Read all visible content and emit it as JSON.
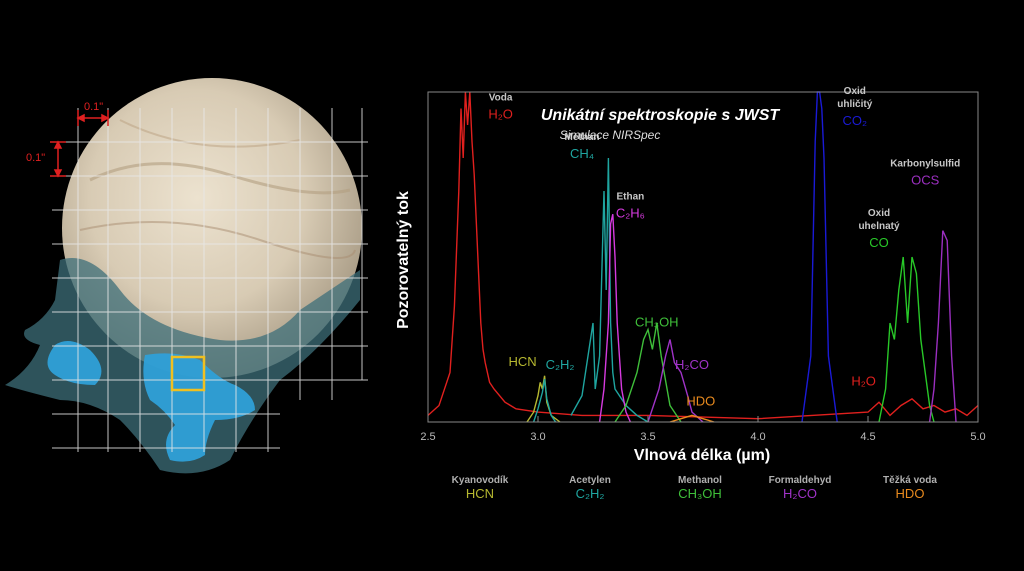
{
  "map": {
    "scale_x_label": "0.1\"",
    "scale_y_label": "0.1\""
  },
  "chart_data": {
    "type": "line",
    "title": "Unikátní spektroskopie s JWST",
    "subtitle": "Simulace NIRSpec",
    "xlabel": "Vlnová délka (µm)",
    "ylabel": "Pozorovatelný tok",
    "xlim": [
      2.5,
      5.0
    ],
    "ylim": [
      0,
      1
    ],
    "xticks": [
      "2.5",
      "3.0",
      "3.5",
      "4.0",
      "4.5",
      "5.0"
    ],
    "grid": false,
    "series": [
      {
        "name": "H2O",
        "color": "#e0201e",
        "x": [
          2.5,
          2.55,
          2.6,
          2.62,
          2.64,
          2.65,
          2.66,
          2.67,
          2.68,
          2.69,
          2.7,
          2.71,
          2.72,
          2.73,
          2.74,
          2.75,
          2.76,
          2.78,
          2.8,
          2.85,
          2.9,
          3.0,
          3.2,
          3.5,
          4.0,
          4.5,
          4.55,
          4.6,
          4.65,
          4.7,
          4.75,
          4.8,
          4.85,
          4.9,
          4.95,
          5.0
        ],
        "y": [
          0.02,
          0.05,
          0.15,
          0.35,
          0.7,
          0.95,
          0.8,
          1.0,
          0.9,
          1.0,
          0.85,
          0.75,
          0.6,
          0.45,
          0.3,
          0.22,
          0.18,
          0.12,
          0.1,
          0.06,
          0.04,
          0.03,
          0.02,
          0.02,
          0.01,
          0.03,
          0.06,
          0.02,
          0.05,
          0.07,
          0.04,
          0.05,
          0.03,
          0.04,
          0.02,
          0.05
        ]
      },
      {
        "name": "CH4",
        "color": "#1fa5a0",
        "x": [
          3.15,
          3.2,
          3.25,
          3.26,
          3.28,
          3.3,
          3.31,
          3.32,
          3.33,
          3.34,
          3.35,
          3.4,
          3.45,
          3.5
        ],
        "y": [
          0.02,
          0.08,
          0.3,
          0.1,
          0.2,
          0.7,
          0.4,
          0.8,
          0.3,
          0.15,
          0.1,
          0.05,
          0.02,
          0.0
        ]
      },
      {
        "name": "C2H6",
        "color": "#d63adf",
        "x": [
          3.28,
          3.3,
          3.32,
          3.33,
          3.34,
          3.35,
          3.36,
          3.38,
          3.4,
          3.42
        ],
        "y": [
          0.0,
          0.1,
          0.3,
          0.6,
          0.63,
          0.5,
          0.3,
          0.1,
          0.03,
          0.0
        ]
      },
      {
        "name": "CH3OH",
        "color": "#3fbf3a",
        "x": [
          3.35,
          3.4,
          3.45,
          3.48,
          3.5,
          3.52,
          3.54,
          3.56,
          3.6,
          3.65
        ],
        "y": [
          0.0,
          0.05,
          0.15,
          0.25,
          0.28,
          0.22,
          0.3,
          0.2,
          0.05,
          0.0
        ]
      },
      {
        "name": "H2CO",
        "color": "#a033c8",
        "x": [
          3.5,
          3.55,
          3.58,
          3.6,
          3.62,
          3.65,
          3.68,
          3.7,
          3.75
        ],
        "y": [
          0.0,
          0.1,
          0.2,
          0.25,
          0.18,
          0.15,
          0.08,
          0.03,
          0.0
        ]
      },
      {
        "name": "HCN",
        "color": "#b6b830",
        "x": [
          2.95,
          2.98,
          3.0,
          3.01,
          3.02,
          3.03,
          3.04,
          3.06,
          3.1
        ],
        "y": [
          0.0,
          0.03,
          0.08,
          0.12,
          0.1,
          0.14,
          0.06,
          0.02,
          0.0
        ]
      },
      {
        "name": "C2H2",
        "color": "#1fa5a0",
        "x": [
          2.98,
          3.0,
          3.02,
          3.03,
          3.04,
          3.06,
          3.08
        ],
        "y": [
          0.0,
          0.04,
          0.09,
          0.13,
          0.07,
          0.02,
          0.0
        ]
      },
      {
        "name": "HDO",
        "color": "#e88a1e",
        "x": [
          3.6,
          3.65,
          3.7,
          3.75,
          3.8
        ],
        "y": [
          0.0,
          0.01,
          0.02,
          0.01,
          0.0
        ]
      },
      {
        "name": "CO2",
        "color": "#1a1ad6",
        "x": [
          4.2,
          4.24,
          4.26,
          4.27,
          4.28,
          4.29,
          4.3,
          4.32,
          4.36
        ],
        "y": [
          0.0,
          0.2,
          0.85,
          1.0,
          1.0,
          0.95,
          0.8,
          0.2,
          0.0
        ]
      },
      {
        "name": "CO",
        "color": "#28c828",
        "x": [
          4.55,
          4.58,
          4.6,
          4.62,
          4.64,
          4.66,
          4.68,
          4.7,
          4.72,
          4.74,
          4.76,
          4.78,
          4.8
        ],
        "y": [
          0.0,
          0.1,
          0.3,
          0.25,
          0.4,
          0.5,
          0.3,
          0.5,
          0.45,
          0.25,
          0.15,
          0.05,
          0.0
        ]
      },
      {
        "name": "OCS",
        "color": "#9b2fc0",
        "x": [
          4.78,
          4.8,
          4.82,
          4.84,
          4.86,
          4.88,
          4.9
        ],
        "y": [
          0.0,
          0.1,
          0.3,
          0.58,
          0.55,
          0.2,
          0.0
        ]
      }
    ],
    "annotations": [
      {
        "name": "Voda",
        "formula": "H₂O",
        "color": "#e0201e",
        "x": 2.83,
        "y": 0.92
      },
      {
        "name": "Methan",
        "formula": "CH₄",
        "color": "#1fa5a0",
        "x": 3.2,
        "y": 0.8
      },
      {
        "name": "Ethan",
        "formula": "C₂H₆",
        "color": "#d63adf",
        "x": 3.42,
        "y": 0.62
      },
      {
        "name": "",
        "formula": "CH₃OH",
        "color": "#3fbf3a",
        "x": 3.54,
        "y": 0.29
      },
      {
        "name": "",
        "formula": "H₂CO",
        "color": "#a033c8",
        "x": 3.7,
        "y": 0.16
      },
      {
        "name": "",
        "formula": "HCN",
        "color": "#b6b830",
        "x": 2.93,
        "y": 0.17
      },
      {
        "name": "",
        "formula": "C₂H₂",
        "color": "#1fa5a0",
        "x": 3.1,
        "y": 0.16
      },
      {
        "name": "",
        "formula": "HDO",
        "color": "#e88a1e",
        "x": 3.74,
        "y": 0.05
      },
      {
        "name": "Oxid uhličitý",
        "formula": "CO₂",
        "color": "#1a1ad6",
        "x": 4.44,
        "y": 0.9
      },
      {
        "name": "Karbonylsulfid",
        "formula": "OCS",
        "color": "#9b2fc0",
        "x": 4.76,
        "y": 0.72
      },
      {
        "name": "Oxid uhelnatý",
        "formula": "CO",
        "color": "#28c828",
        "x": 4.55,
        "y": 0.53
      },
      {
        "name": "",
        "formula": "H₂O",
        "color": "#e0201e",
        "x": 4.48,
        "y": 0.11
      }
    ],
    "legend": [
      {
        "name": "Kyanovodík",
        "formula": "HCN",
        "color": "#b6b830"
      },
      {
        "name": "Acetylen",
        "formula": "C₂H₂",
        "color": "#1fa5a0"
      },
      {
        "name": "Methanol",
        "formula": "CH₃OH",
        "color": "#3fbf3a"
      },
      {
        "name": "Formaldehyd",
        "formula": "H₂CO",
        "color": "#a033c8"
      },
      {
        "name": "Těžká voda",
        "formula": "HDO",
        "color": "#e88a1e"
      }
    ]
  }
}
